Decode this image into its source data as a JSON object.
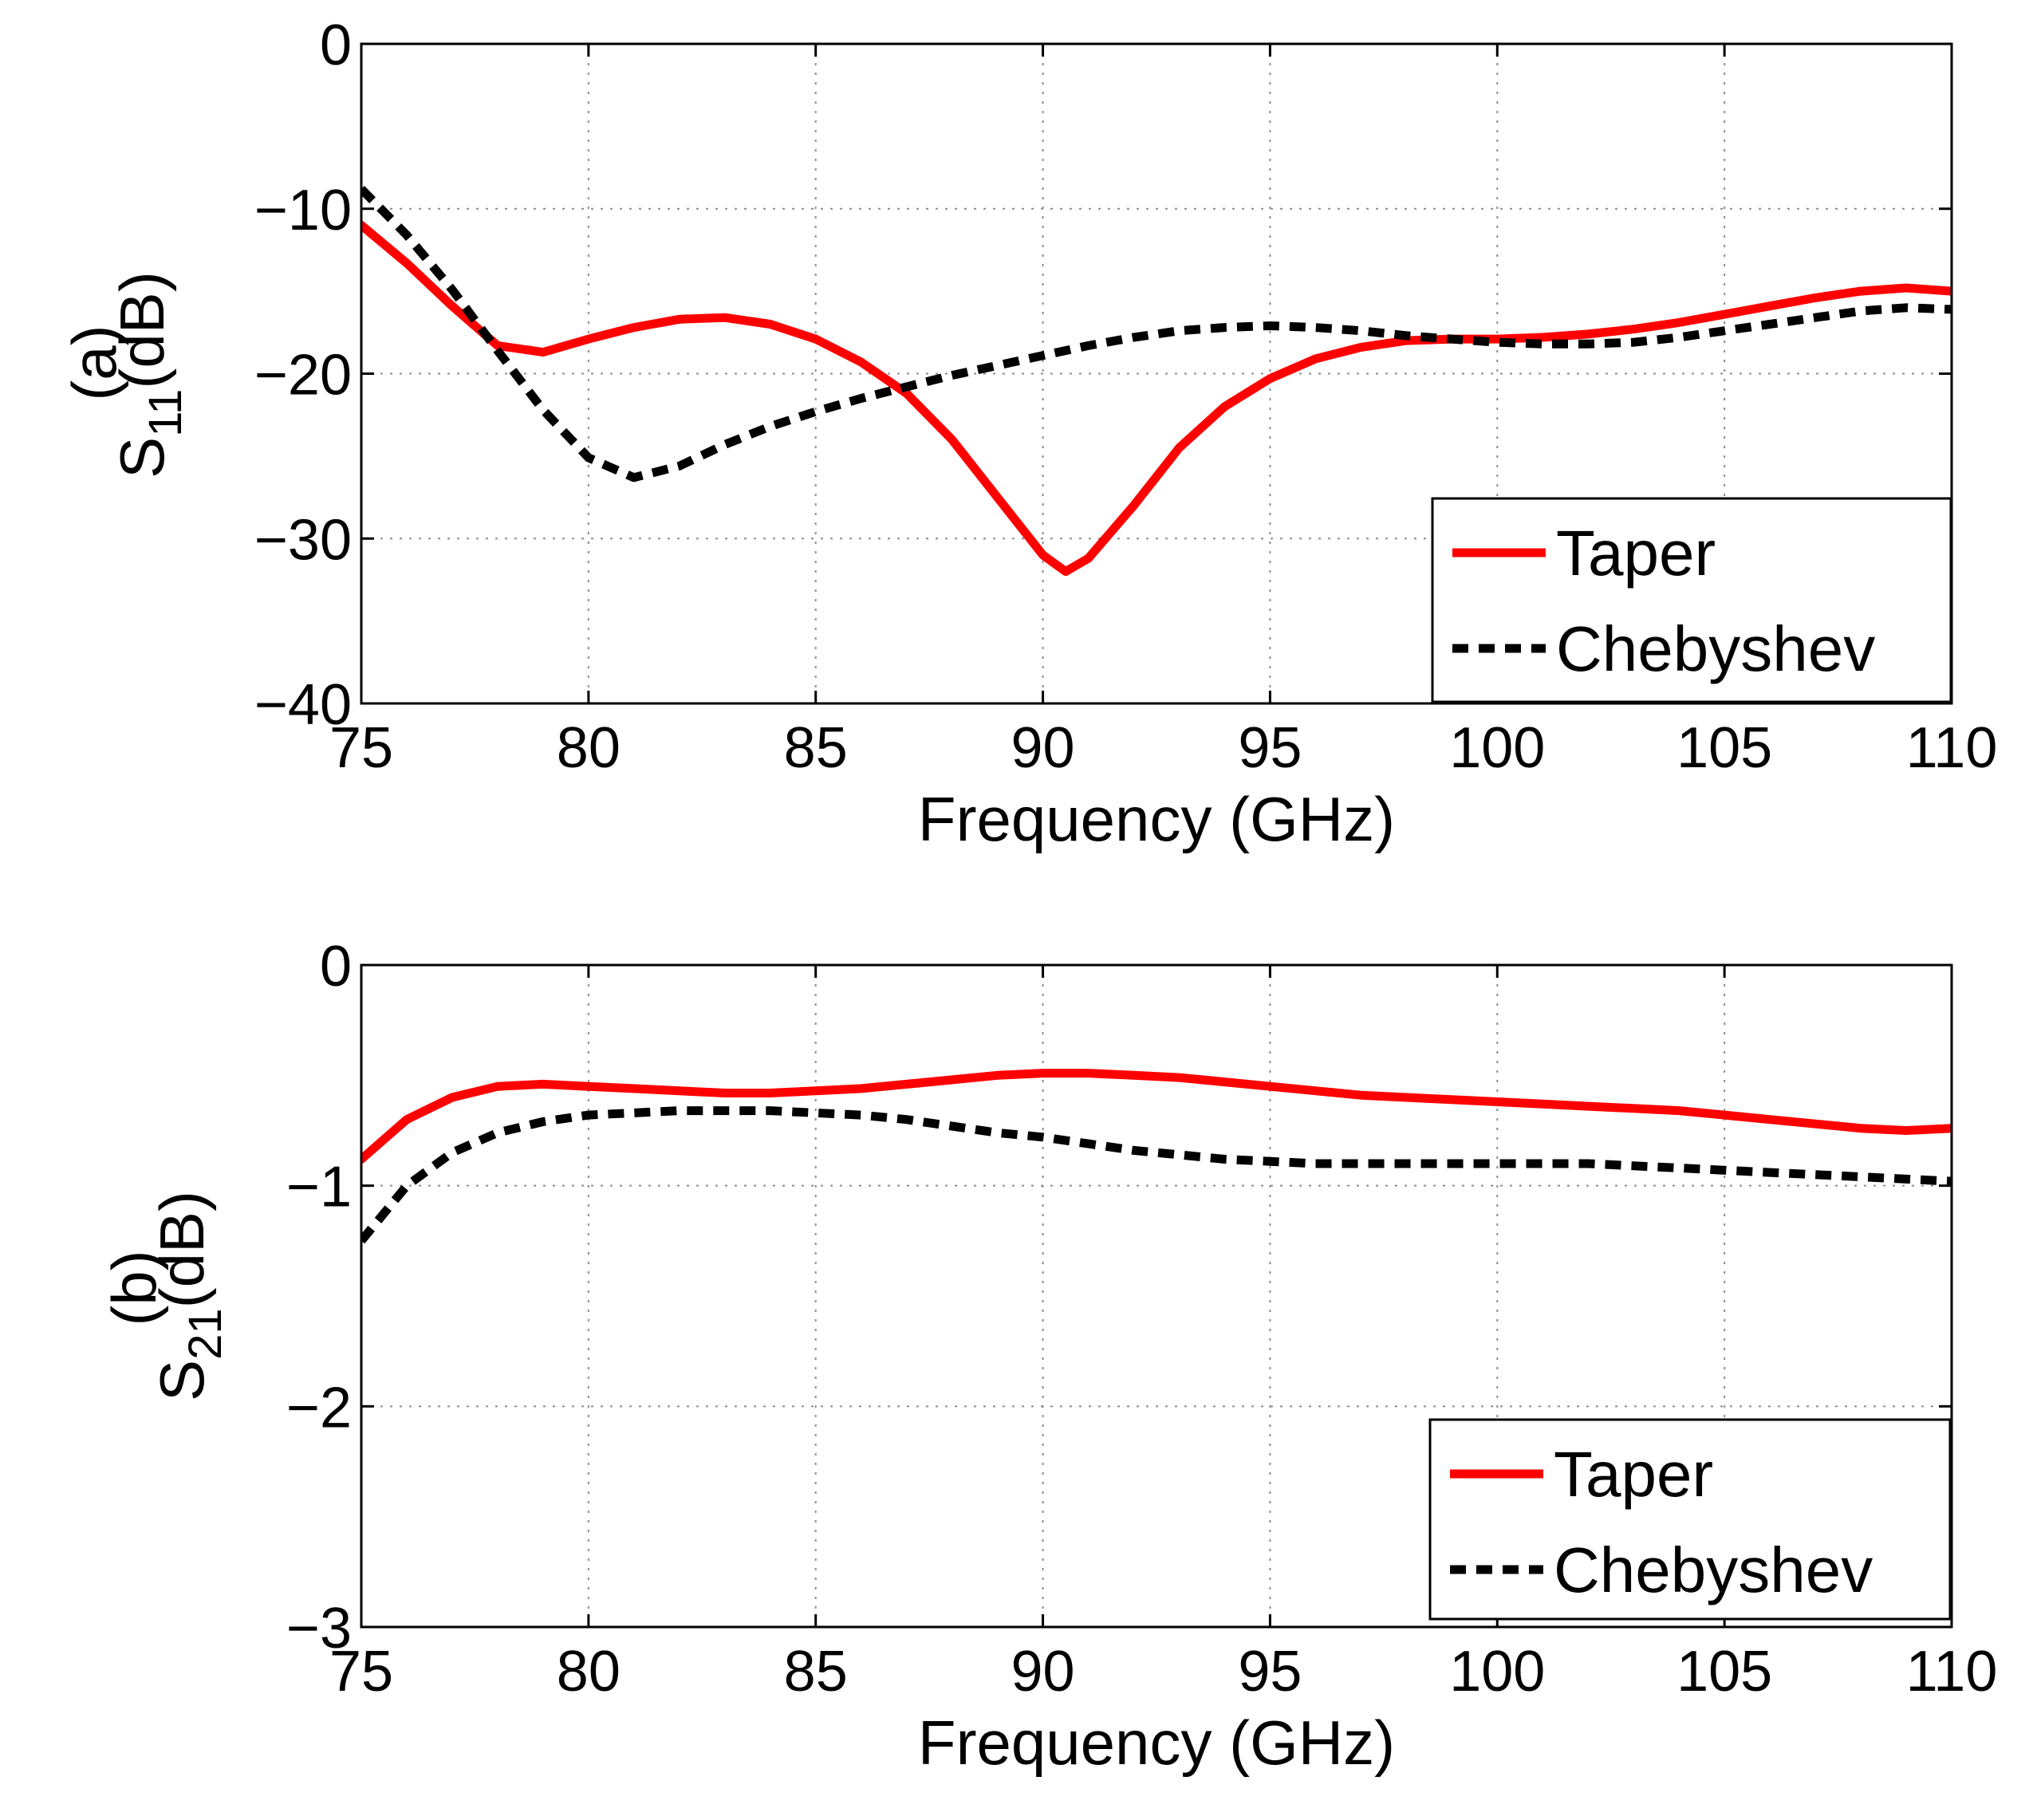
{
  "chart_data": [
    {
      "type": "line",
      "panel_label": "(a)",
      "ylabel_main": "S",
      "ylabel_sub": "11",
      "ylabel_unit": "(dB)",
      "xlabel": "Frequency (GHz)",
      "xlim": [
        75,
        110
      ],
      "ylim": [
        -40,
        0
      ],
      "xticks": [
        75,
        80,
        85,
        90,
        95,
        100,
        105,
        110
      ],
      "yticks": [
        0,
        -10,
        -20,
        -30,
        -40
      ],
      "xtick_labels": [
        "75",
        "80",
        "85",
        "90",
        "95",
        "100",
        "105",
        "110"
      ],
      "ytick_labels": [
        "0",
        "−10",
        "−20",
        "−30",
        "−40"
      ],
      "grid": true,
      "legend_position": "bottom-right",
      "series": [
        {
          "name": "Taper",
          "color": "#ff0000",
          "style": "solid",
          "x": [
            75,
            76,
            77,
            78,
            79,
            80,
            81,
            82,
            83,
            84,
            85,
            86,
            87,
            88,
            89,
            90,
            90.5,
            91,
            92,
            93,
            94,
            95,
            96,
            97,
            98,
            99,
            100,
            101,
            102,
            103,
            104,
            105,
            106,
            107,
            108,
            109,
            110
          ],
          "y": [
            -11,
            -13.3,
            -15.9,
            -18.3,
            -18.7,
            -17.9,
            -17.2,
            -16.7,
            -16.6,
            -17.0,
            -17.9,
            -19.3,
            -21.2,
            -24.0,
            -27.5,
            -31.0,
            -32.0,
            -31.2,
            -28.0,
            -24.5,
            -22.0,
            -20.3,
            -19.1,
            -18.4,
            -18.0,
            -17.9,
            -17.9,
            -17.8,
            -17.6,
            -17.3,
            -16.9,
            -16.4,
            -15.9,
            -15.4,
            -15.0,
            -14.8,
            -15.0
          ]
        },
        {
          "name": "Chebyshev",
          "color": "#000000",
          "style": "dashed",
          "x": [
            75,
            76,
            77,
            78,
            79,
            80,
            81,
            82,
            83,
            84,
            85,
            86,
            87,
            88,
            89,
            90,
            91,
            92,
            93,
            94,
            95,
            96,
            97,
            98,
            99,
            100,
            101,
            102,
            103,
            104,
            105,
            106,
            107,
            108,
            109,
            110
          ],
          "y": [
            -8.8,
            -11.6,
            -14.9,
            -18.6,
            -22.2,
            -25.1,
            -26.3,
            -25.6,
            -24.3,
            -23.2,
            -22.3,
            -21.5,
            -20.8,
            -20.1,
            -19.5,
            -18.9,
            -18.3,
            -17.8,
            -17.4,
            -17.2,
            -17.1,
            -17.2,
            -17.4,
            -17.7,
            -17.9,
            -18.1,
            -18.2,
            -18.2,
            -18.1,
            -17.8,
            -17.4,
            -17.0,
            -16.6,
            -16.2,
            -16.0,
            -16.1
          ]
        }
      ]
    },
    {
      "type": "line",
      "panel_label": "(b)",
      "ylabel_main": "S",
      "ylabel_sub": "21",
      "ylabel_unit": "(dB)",
      "xlabel": "Frequency (GHz)",
      "xlim": [
        75,
        110
      ],
      "ylim": [
        -3,
        0
      ],
      "xticks": [
        75,
        80,
        85,
        90,
        95,
        100,
        105,
        110
      ],
      "yticks": [
        0,
        -1,
        -2,
        -3
      ],
      "xtick_labels": [
        "75",
        "80",
        "85",
        "90",
        "95",
        "100",
        "105",
        "110"
      ],
      "ytick_labels": [
        "0",
        "−1",
        "−2",
        "−3"
      ],
      "grid": true,
      "legend_position": "bottom-right",
      "series": [
        {
          "name": "Taper",
          "color": "#ff0000",
          "style": "solid",
          "x": [
            75,
            76,
            77,
            78,
            79,
            80,
            81,
            82,
            83,
            84,
            85,
            86,
            87,
            88,
            89,
            90,
            91,
            92,
            93,
            94,
            95,
            96,
            97,
            98,
            99,
            100,
            101,
            102,
            103,
            104,
            105,
            106,
            107,
            108,
            109,
            110
          ],
          "y": [
            -0.88,
            -0.7,
            -0.6,
            -0.55,
            -0.54,
            -0.55,
            -0.56,
            -0.57,
            -0.58,
            -0.58,
            -0.57,
            -0.56,
            -0.54,
            -0.52,
            -0.5,
            -0.49,
            -0.49,
            -0.5,
            -0.51,
            -0.53,
            -0.55,
            -0.57,
            -0.59,
            -0.6,
            -0.61,
            -0.62,
            -0.63,
            -0.64,
            -0.65,
            -0.66,
            -0.68,
            -0.7,
            -0.72,
            -0.74,
            -0.75,
            -0.74
          ]
        },
        {
          "name": "Chebyshev",
          "color": "#000000",
          "style": "dashed",
          "x": [
            75,
            76,
            77,
            78,
            79,
            80,
            81,
            82,
            83,
            84,
            85,
            86,
            87,
            88,
            89,
            90,
            91,
            92,
            93,
            94,
            95,
            96,
            97,
            98,
            99,
            100,
            101,
            102,
            103,
            104,
            105,
            106,
            107,
            108,
            109,
            110
          ],
          "y": [
            -1.25,
            -1.0,
            -0.85,
            -0.76,
            -0.71,
            -0.68,
            -0.67,
            -0.66,
            -0.66,
            -0.66,
            -0.67,
            -0.68,
            -0.7,
            -0.73,
            -0.76,
            -0.78,
            -0.81,
            -0.84,
            -0.86,
            -0.88,
            -0.89,
            -0.9,
            -0.9,
            -0.9,
            -0.9,
            -0.9,
            -0.9,
            -0.9,
            -0.91,
            -0.92,
            -0.93,
            -0.94,
            -0.95,
            -0.96,
            -0.97,
            -0.98
          ]
        }
      ]
    }
  ]
}
